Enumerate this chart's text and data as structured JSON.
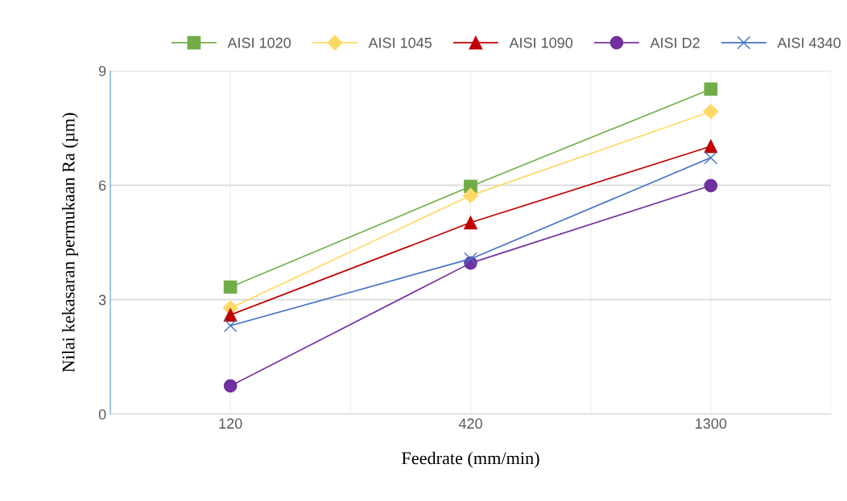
{
  "chart_data": {
    "type": "line",
    "xlabel": "Feedrate (mm/min)",
    "ylabel": "Nilai kekasaran permukaan Ra (µm)",
    "categories": [
      "120",
      "420",
      "1300"
    ],
    "series": [
      {
        "name": "AISI 1020",
        "color": "#70ad47",
        "marker": "square",
        "values": [
          3.33,
          5.97,
          8.52
        ]
      },
      {
        "name": "AISI 1045",
        "color": "#ffd966",
        "marker": "diamond",
        "values": [
          2.78,
          5.73,
          7.93
        ]
      },
      {
        "name": "AISI 1090",
        "color": "#c00000",
        "marker": "triangle",
        "values": [
          2.6,
          5.02,
          7.02
        ]
      },
      {
        "name": "AISI D2",
        "color": "#7030a0",
        "marker": "circle",
        "values": [
          0.74,
          3.96,
          5.99
        ]
      },
      {
        "name": "AISI 4340",
        "color": "#4472c4",
        "marker": "cross",
        "values": [
          2.32,
          4.07,
          6.72
        ]
      }
    ],
    "ylim": [
      0,
      9
    ],
    "yticks": [
      0,
      3,
      6,
      9
    ],
    "grid": true,
    "legend": "top"
  }
}
